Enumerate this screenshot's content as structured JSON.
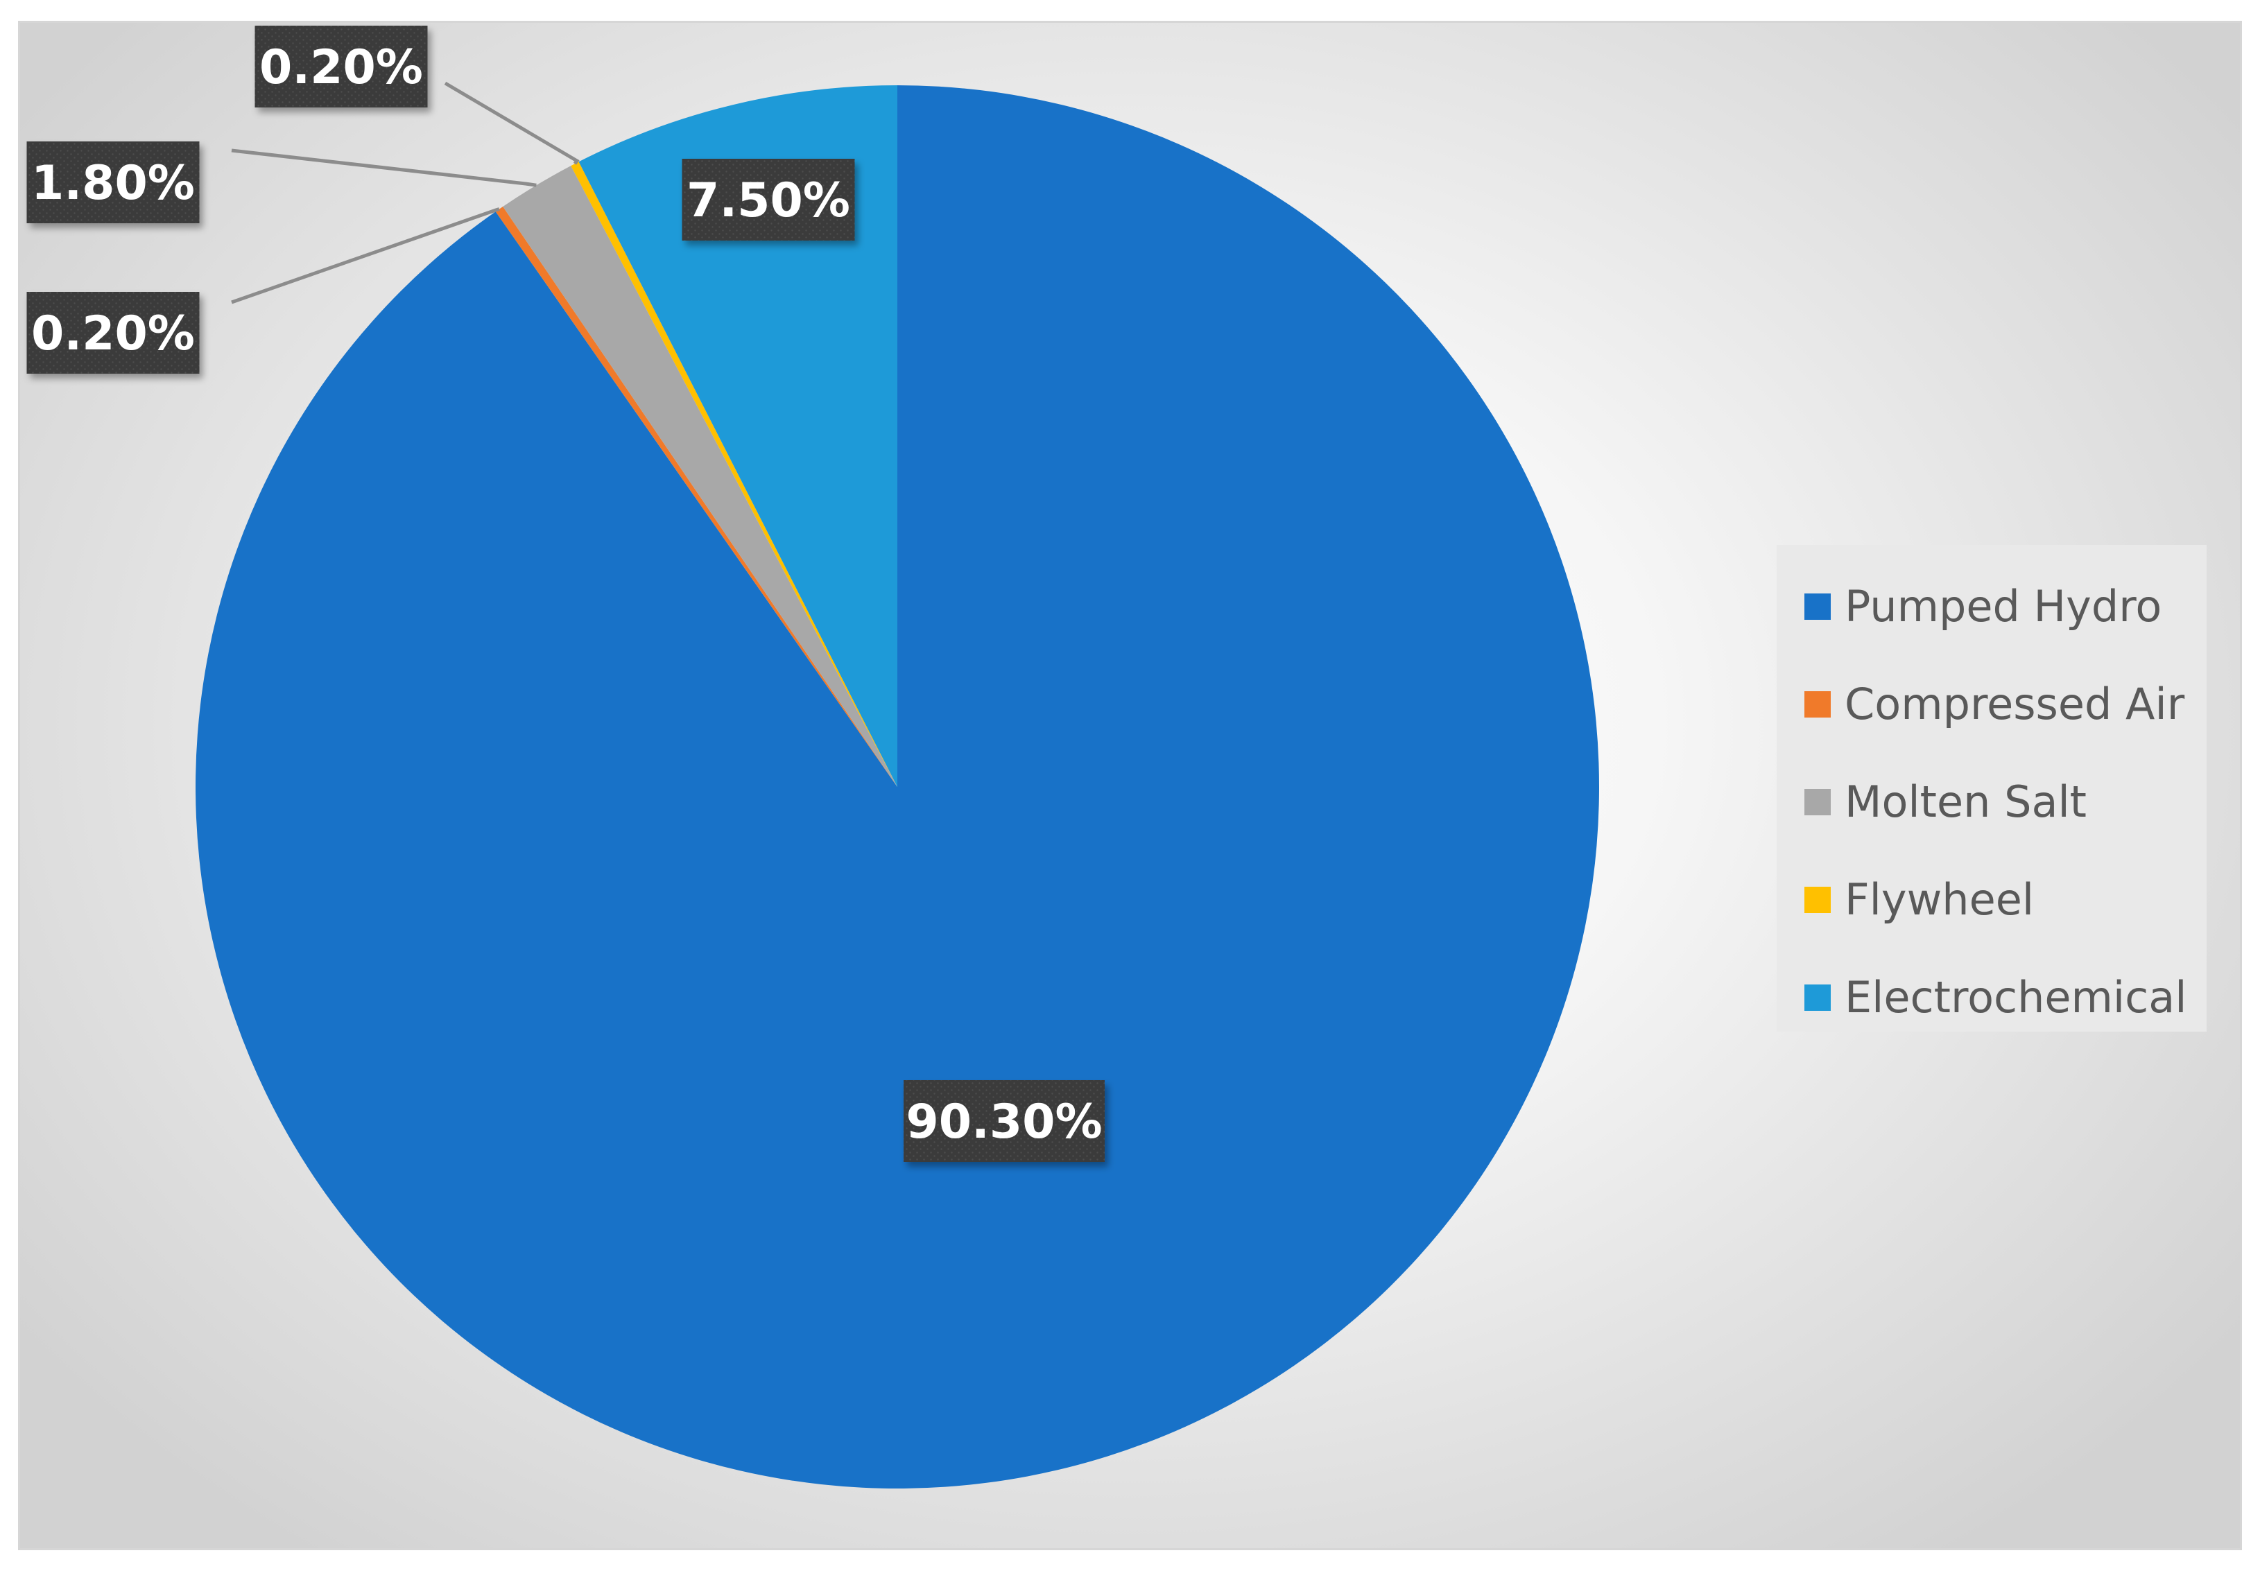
{
  "chart_data": {
    "type": "pie",
    "title": "",
    "categories": [
      "Pumped Hydro",
      "Compressed Air",
      "Molten Salt",
      "Flywheel",
      "Electrochemical"
    ],
    "values": [
      90.3,
      0.2,
      1.8,
      0.2,
      7.5
    ],
    "data_labels": [
      "90.30%",
      "0.20%",
      "1.80%",
      "0.20%",
      "7.50%"
    ],
    "colors": [
      "#1872c8",
      "#f07a2a",
      "#a8a8a8",
      "#ffc000",
      "#1e9ad8"
    ],
    "start_angle_deg": 0,
    "direction": "clockwise",
    "legend_position": "right",
    "label_style": "white bold text on dark boxes, leader lines for small slices"
  }
}
